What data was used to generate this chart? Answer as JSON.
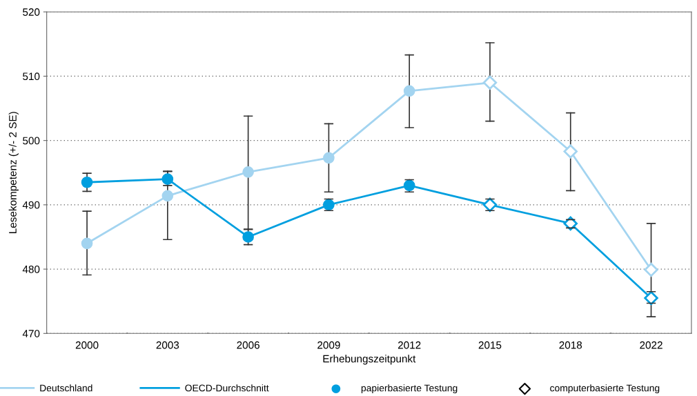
{
  "chart_data": {
    "type": "line",
    "xlabel": "Erhebungszeitpunkt",
    "ylabel": "Lesekompetenz (+/- 2 SE)",
    "categories": [
      "2000",
      "2003",
      "2006",
      "2009",
      "2012",
      "2015",
      "2018",
      "2022"
    ],
    "ylim": [
      470,
      520
    ],
    "yticks": [
      470,
      480,
      490,
      500,
      510,
      520
    ],
    "grid": "y",
    "legend": "bottom",
    "line_style": "solid",
    "series": [
      {
        "name": "Deutschland",
        "color": "#a3d4f0",
        "values": [
          484.0,
          491.4,
          495.1,
          497.3,
          507.7,
          509.0,
          498.3,
          479.9
        ],
        "errors": [
          [
            479.1,
            489.0
          ],
          [
            484.6,
            495.2
          ],
          [
            486.2,
            503.8
          ],
          [
            492.0,
            502.6
          ],
          [
            502.0,
            513.3
          ],
          [
            503.0,
            515.2
          ],
          [
            492.2,
            504.3
          ],
          [
            472.6,
            487.1
          ]
        ],
        "marker": [
          "circle",
          "circle",
          "circle",
          "circle",
          "circle",
          "diamond",
          "diamond",
          "diamond"
        ]
      },
      {
        "name": "OECD-Durchschnitt",
        "color": "#009fdf",
        "values": [
          493.5,
          494.0,
          485.0,
          490.0,
          493.0,
          490.0,
          487.1,
          475.5
        ],
        "errors": [
          [
            492.1,
            494.9
          ],
          [
            493.0,
            495.2
          ],
          [
            483.8,
            486.2
          ],
          [
            489.1,
            490.9
          ],
          [
            492.0,
            493.9
          ],
          [
            489.1,
            490.9
          ],
          [
            486.4,
            487.7
          ],
          [
            474.7,
            476.5
          ]
        ],
        "marker": [
          "circle",
          "circle",
          "circle",
          "circle",
          "circle",
          "diamond",
          "diamond",
          "diamond"
        ]
      },
      {
        "name": "papierbasierte Testung",
        "type": "scatter",
        "marker": "circle",
        "color": "#009fdf",
        "values": [
          null,
          null,
          null,
          null,
          null,
          null,
          null,
          null
        ]
      },
      {
        "name": "computerbasierte Testung",
        "type": "scatter",
        "marker": "diamond",
        "color": "#000000",
        "values": [
          null,
          null,
          null,
          null,
          null,
          null,
          null,
          null
        ]
      }
    ]
  }
}
